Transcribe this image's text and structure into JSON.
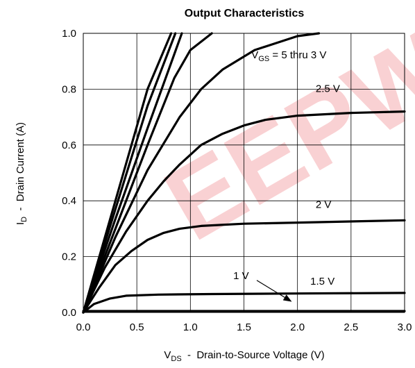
{
  "chart_data": {
    "type": "line",
    "title": "Output Characteristics",
    "xlabel": {
      "main": "V",
      "sub": "DS",
      "rest": "  -  Drain-to-Source Voltage (V)"
    },
    "ylabel": {
      "main": "I",
      "sub": "D",
      "rest": "  -  Drain Current (A)"
    },
    "xlim": [
      0,
      3
    ],
    "ylim": [
      0,
      1
    ],
    "xticks": [
      "0.0",
      "0.5",
      "1.0",
      "1.5",
      "2.0",
      "2.5",
      "3.0"
    ],
    "yticks": [
      "0.0",
      "0.2",
      "0.4",
      "0.6",
      "0.8",
      "1.0"
    ],
    "grid": true,
    "line_color": "#000000",
    "series": [
      {
        "points": [
          [
            0,
            0
          ],
          [
            0.3,
            0.4
          ],
          [
            0.6,
            0.8
          ],
          [
            0.82,
            1.0
          ]
        ]
      },
      {
        "points": [
          [
            0,
            0
          ],
          [
            0.3,
            0.37
          ],
          [
            0.6,
            0.74
          ],
          [
            0.86,
            1.0
          ]
        ]
      },
      {
        "points": [
          [
            0,
            0
          ],
          [
            0.3,
            0.335
          ],
          [
            0.6,
            0.66
          ],
          [
            0.92,
            1.0
          ]
        ]
      },
      {
        "points": [
          [
            0,
            0
          ],
          [
            0.3,
            0.3
          ],
          [
            0.6,
            0.6
          ],
          [
            0.85,
            0.84
          ],
          [
            1.0,
            0.94
          ],
          [
            1.2,
            1.0
          ]
        ]
      },
      {
        "points": [
          [
            0,
            0
          ],
          [
            0.3,
            0.27
          ],
          [
            0.6,
            0.51
          ],
          [
            0.9,
            0.7
          ],
          [
            1.1,
            0.8
          ],
          [
            1.3,
            0.87
          ],
          [
            1.6,
            0.94
          ],
          [
            2.0,
            0.99
          ],
          [
            2.2,
            1.0
          ]
        ]
      },
      {
        "points": [
          [
            0,
            0
          ],
          [
            0.2,
            0.16
          ],
          [
            0.4,
            0.29
          ],
          [
            0.6,
            0.4
          ],
          [
            0.75,
            0.47
          ],
          [
            0.9,
            0.53
          ],
          [
            1.1,
            0.6
          ],
          [
            1.3,
            0.64
          ],
          [
            1.5,
            0.67
          ],
          [
            1.7,
            0.69
          ],
          [
            2.0,
            0.705
          ],
          [
            2.5,
            0.715
          ],
          [
            3.0,
            0.72
          ]
        ]
      },
      {
        "points": [
          [
            0,
            0
          ],
          [
            0.15,
            0.09
          ],
          [
            0.3,
            0.17
          ],
          [
            0.45,
            0.22
          ],
          [
            0.6,
            0.26
          ],
          [
            0.75,
            0.285
          ],
          [
            0.9,
            0.3
          ],
          [
            1.1,
            0.31
          ],
          [
            1.5,
            0.318
          ],
          [
            2.0,
            0.322
          ],
          [
            3.0,
            0.33
          ]
        ]
      },
      {
        "points": [
          [
            0,
            0
          ],
          [
            0.1,
            0.03
          ],
          [
            0.25,
            0.05
          ],
          [
            0.4,
            0.06
          ],
          [
            0.7,
            0.064
          ],
          [
            1.2,
            0.066
          ],
          [
            2.0,
            0.068
          ],
          [
            3.0,
            0.07
          ]
        ]
      },
      {
        "points": [
          [
            0,
            0.005
          ],
          [
            3.0,
            0.005
          ]
        ]
      }
    ],
    "annotations": [
      {
        "label": "V_GS = 5 thru 3 V",
        "main": "V",
        "sub": "GS",
        "rest": " = 5 thru 3 V",
        "x": 1.57,
        "y": 0.91
      },
      {
        "label": "2.5 V",
        "x": 2.17,
        "y": 0.79
      },
      {
        "label": "2 V",
        "x": 2.17,
        "y": 0.375
      },
      {
        "label": "1.5 V",
        "x": 2.12,
        "y": 0.1
      },
      {
        "label": "1 V",
        "x": 1.4,
        "y": 0.12
      }
    ],
    "arrow": {
      "from": [
        1.62,
        0.115
      ],
      "to": [
        1.94,
        0.04
      ]
    }
  },
  "watermark": {
    "text": "EEPW",
    "color": "#e8343a"
  }
}
